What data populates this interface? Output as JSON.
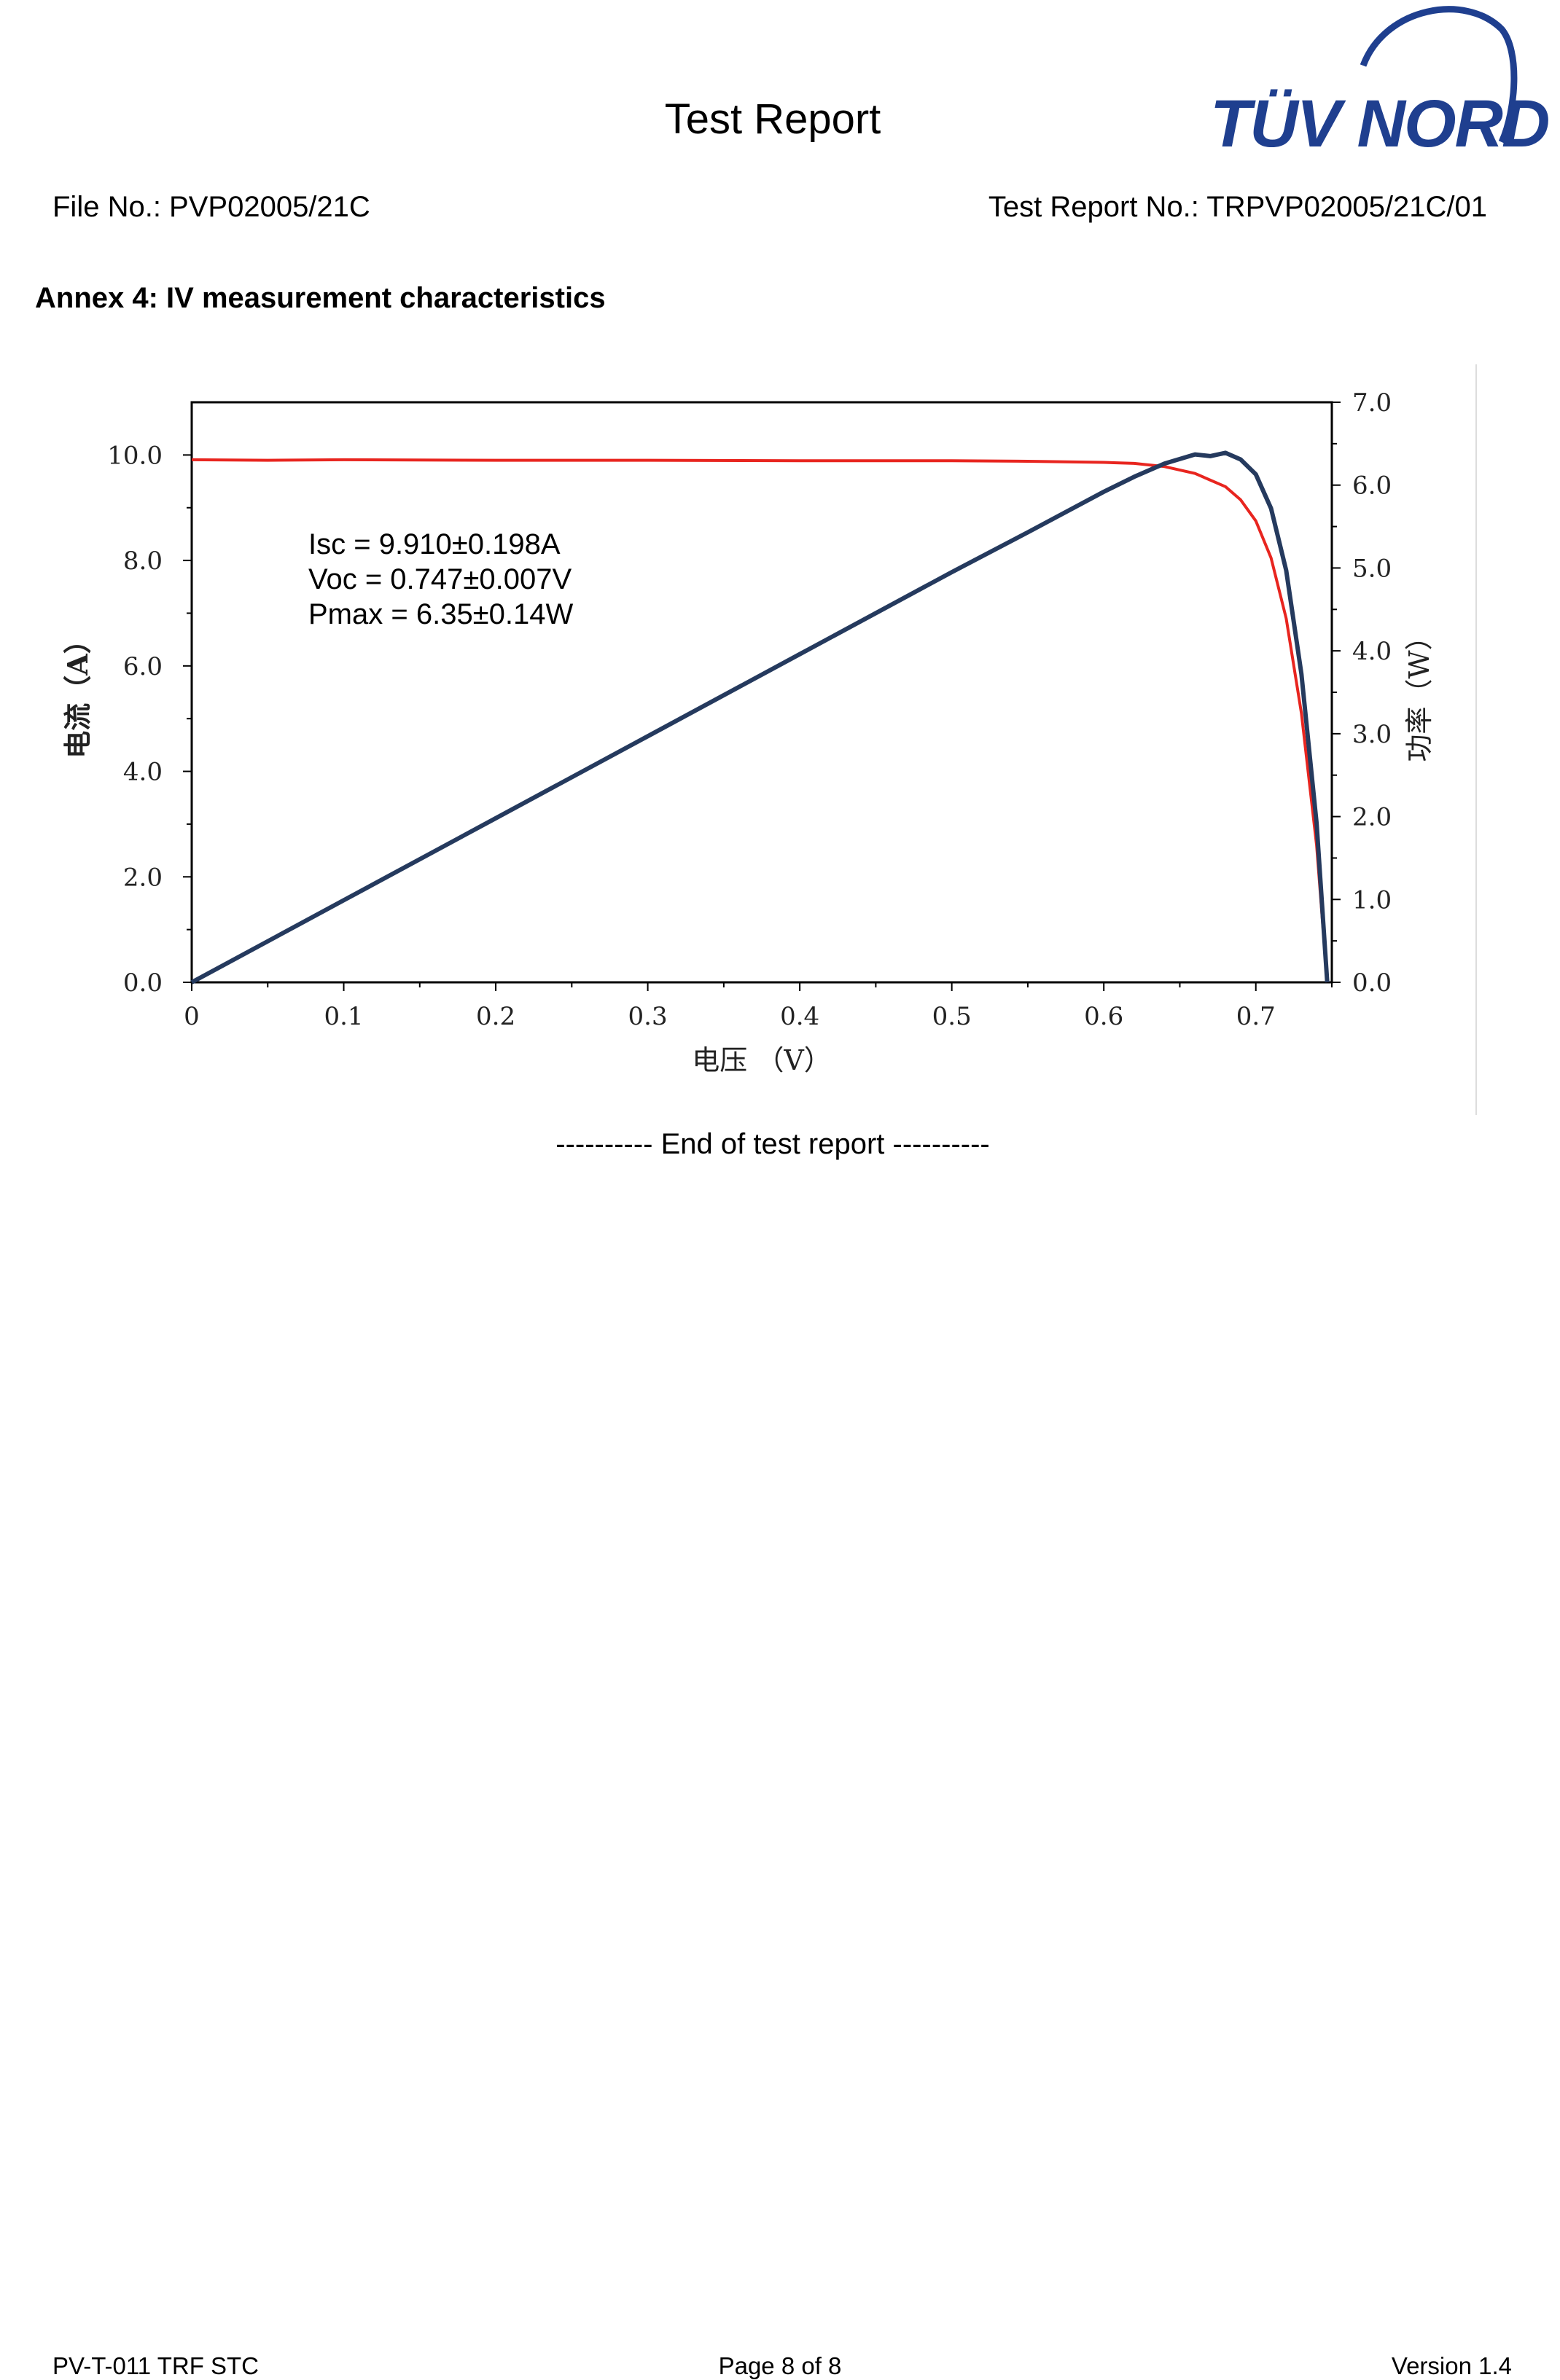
{
  "header": {
    "title": "Test Report",
    "logo_text": "TÜV NORD",
    "file_no": "File No.: PVP02005/21C",
    "report_no": "Test Report No.: TRPVP02005/21C/01"
  },
  "section": {
    "heading": "Annex 4: IV measurement characteristics"
  },
  "chart_data": {
    "type": "line",
    "xlabel": "电压 （V）",
    "ylabel_left": "电流（A）",
    "ylabel_right": "功率（W）",
    "xlim": [
      0,
      0.75
    ],
    "ylim_left": [
      0,
      11
    ],
    "ylim_right": [
      0,
      7
    ],
    "x_ticks": [
      "0",
      "0.1",
      "0.2",
      "0.3",
      "0.4",
      "0.5",
      "0.6",
      "0.7"
    ],
    "y_ticks_left": [
      "0.0",
      "2.0",
      "4.0",
      "6.0",
      "8.0",
      "10.0"
    ],
    "y_ticks_right": [
      "0.0",
      "1.0",
      "2.0",
      "3.0",
      "4.0",
      "5.0",
      "6.0",
      "7.0"
    ],
    "annotations": [
      "Isc = 9.910±0.198A",
      "Voc = 0.747±0.007V",
      "Pmax = 6.35±0.14W"
    ],
    "grid": false,
    "series": [
      {
        "color": "#e8251f",
        "axis": "left",
        "x": [
          0,
          0.05,
          0.1,
          0.2,
          0.3,
          0.4,
          0.5,
          0.55,
          0.6,
          0.62,
          0.64,
          0.66,
          0.68,
          0.69,
          0.7,
          0.71,
          0.72,
          0.73,
          0.74,
          0.747
        ],
        "y": [
          9.91,
          9.9,
          9.91,
          9.9,
          9.9,
          9.89,
          9.89,
          9.88,
          9.86,
          9.84,
          9.78,
          9.65,
          9.4,
          9.15,
          8.75,
          8.05,
          6.9,
          5.1,
          2.6,
          0.0
        ]
      },
      {
        "color": "#253a5e",
        "axis": "right",
        "x": [
          0,
          0.1,
          0.2,
          0.3,
          0.4,
          0.5,
          0.55,
          0.6,
          0.62,
          0.64,
          0.66,
          0.67,
          0.68,
          0.69,
          0.7,
          0.71,
          0.72,
          0.73,
          0.74,
          0.747
        ],
        "y": [
          0,
          0.99,
          1.98,
          2.97,
          3.96,
          4.95,
          5.43,
          5.92,
          6.1,
          6.26,
          6.37,
          6.35,
          6.39,
          6.31,
          6.13,
          5.72,
          4.97,
          3.72,
          1.92,
          0.0
        ]
      }
    ]
  },
  "footer": {
    "end_line": "---------- End of test report ----------",
    "left": "PV-T-011 TRF STC",
    "center": "Page 8 of 8",
    "right": "Version 1.4"
  }
}
